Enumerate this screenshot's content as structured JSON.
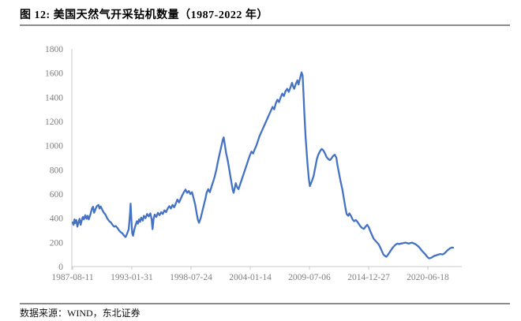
{
  "figure": {
    "title": "图 12: 美国天然气开采钻机数量（1987-2022 年）",
    "source": "数据来源：WIND，东北证券"
  },
  "chart_data": {
    "type": "line",
    "title": "美国天然气开采钻机数量（1987-2022 年）",
    "xlabel": "",
    "ylabel": "",
    "grid": false,
    "legend_position": "none",
    "ylim": [
      0,
      1800
    ],
    "y_tick_interval": 200,
    "y_ticks": [
      0,
      200,
      400,
      600,
      800,
      1000,
      1200,
      1400,
      1600,
      1800
    ],
    "x_ticks": [
      {
        "label": "1987-08-11",
        "year": 1987.61
      },
      {
        "label": "1993-01-31",
        "year": 1993.08
      },
      {
        "label": "1998-07-24",
        "year": 1998.56
      },
      {
        "label": "2004-01-14",
        "year": 2004.04
      },
      {
        "label": "2009-07-06",
        "year": 2009.51
      },
      {
        "label": "2014-12-27",
        "year": 2014.99
      },
      {
        "label": "2020-06-18",
        "year": 2020.46
      }
    ],
    "x_range_years": [
      1987.61,
      2023.6
    ],
    "line_color": "#4472C4",
    "axis_color": "#C9C9C9",
    "label_color": "#7F7F7F",
    "series": [
      {
        "name": "美国天然气开采钻机数量",
        "points": [
          [
            1987.62,
            365
          ],
          [
            1987.7,
            345
          ],
          [
            1987.78,
            390
          ],
          [
            1987.85,
            360
          ],
          [
            1987.95,
            385
          ],
          [
            1988.05,
            330
          ],
          [
            1988.15,
            365
          ],
          [
            1988.25,
            395
          ],
          [
            1988.35,
            345
          ],
          [
            1988.45,
            380
          ],
          [
            1988.55,
            410
          ],
          [
            1988.65,
            390
          ],
          [
            1988.78,
            425
          ],
          [
            1988.9,
            395
          ],
          [
            1989.0,
            420
          ],
          [
            1989.1,
            390
          ],
          [
            1989.25,
            430
          ],
          [
            1989.4,
            480
          ],
          [
            1989.5,
            495
          ],
          [
            1989.6,
            445
          ],
          [
            1989.7,
            470
          ],
          [
            1989.85,
            500
          ],
          [
            1990.0,
            510
          ],
          [
            1990.1,
            480
          ],
          [
            1990.2,
            497
          ],
          [
            1990.35,
            470
          ],
          [
            1990.5,
            445
          ],
          [
            1990.65,
            430
          ],
          [
            1990.8,
            400
          ],
          [
            1991.0,
            375
          ],
          [
            1991.15,
            365
          ],
          [
            1991.3,
            345
          ],
          [
            1991.45,
            330
          ],
          [
            1991.6,
            335
          ],
          [
            1991.75,
            320
          ],
          [
            1991.9,
            300
          ],
          [
            1992.05,
            285
          ],
          [
            1992.2,
            276
          ],
          [
            1992.35,
            258
          ],
          [
            1992.5,
            244
          ],
          [
            1992.6,
            262
          ],
          [
            1992.7,
            285
          ],
          [
            1992.8,
            310
          ],
          [
            1992.92,
            440
          ],
          [
            1992.97,
            520
          ],
          [
            1993.05,
            380
          ],
          [
            1993.12,
            275
          ],
          [
            1993.2,
            255
          ],
          [
            1993.3,
            300
          ],
          [
            1993.42,
            340
          ],
          [
            1993.55,
            375
          ],
          [
            1993.65,
            355
          ],
          [
            1993.75,
            390
          ],
          [
            1993.85,
            370
          ],
          [
            1993.95,
            405
          ],
          [
            1994.1,
            380
          ],
          [
            1994.2,
            420
          ],
          [
            1994.35,
            400
          ],
          [
            1994.5,
            435
          ],
          [
            1994.65,
            415
          ],
          [
            1994.8,
            440
          ],
          [
            1994.92,
            390
          ],
          [
            1995.0,
            310
          ],
          [
            1995.1,
            395
          ],
          [
            1995.2,
            430
          ],
          [
            1995.35,
            410
          ],
          [
            1995.5,
            445
          ],
          [
            1995.65,
            425
          ],
          [
            1995.8,
            450
          ],
          [
            1995.95,
            435
          ],
          [
            1996.1,
            465
          ],
          [
            1996.25,
            450
          ],
          [
            1996.4,
            480
          ],
          [
            1996.55,
            500
          ],
          [
            1996.7,
            480
          ],
          [
            1996.85,
            510
          ],
          [
            1997.0,
            490
          ],
          [
            1997.15,
            520
          ],
          [
            1997.3,
            555
          ],
          [
            1997.45,
            530
          ],
          [
            1997.6,
            560
          ],
          [
            1997.75,
            590
          ],
          [
            1997.9,
            615
          ],
          [
            1998.05,
            637
          ],
          [
            1998.2,
            610
          ],
          [
            1998.35,
            625
          ],
          [
            1998.5,
            600
          ],
          [
            1998.65,
            615
          ],
          [
            1998.8,
            565
          ],
          [
            1998.95,
            510
          ],
          [
            1999.1,
            430
          ],
          [
            1999.2,
            385
          ],
          [
            1999.3,
            362
          ],
          [
            1999.45,
            400
          ],
          [
            1999.6,
            455
          ],
          [
            1999.75,
            510
          ],
          [
            1999.9,
            565
          ],
          [
            2000.0,
            610
          ],
          [
            2000.15,
            640
          ],
          [
            2000.3,
            615
          ],
          [
            2000.45,
            660
          ],
          [
            2000.6,
            700
          ],
          [
            2000.75,
            745
          ],
          [
            2000.9,
            800
          ],
          [
            2001.05,
            870
          ],
          [
            2001.2,
            930
          ],
          [
            2001.35,
            990
          ],
          [
            2001.5,
            1050
          ],
          [
            2001.58,
            1068
          ],
          [
            2001.7,
            1000
          ],
          [
            2001.8,
            940
          ],
          [
            2001.95,
            880
          ],
          [
            2002.1,
            800
          ],
          [
            2002.25,
            720
          ],
          [
            2002.4,
            640
          ],
          [
            2002.5,
            610
          ],
          [
            2002.6,
            650
          ],
          [
            2002.7,
            690
          ],
          [
            2002.8,
            660
          ],
          [
            2002.95,
            640
          ],
          [
            2003.1,
            680
          ],
          [
            2003.25,
            720
          ],
          [
            2003.4,
            760
          ],
          [
            2003.55,
            800
          ],
          [
            2003.7,
            840
          ],
          [
            2003.85,
            880
          ],
          [
            2004.0,
            920
          ],
          [
            2004.15,
            950
          ],
          [
            2004.3,
            935
          ],
          [
            2004.45,
            970
          ],
          [
            2004.6,
            1000
          ],
          [
            2004.75,
            1040
          ],
          [
            2004.9,
            1080
          ],
          [
            2005.05,
            1110
          ],
          [
            2005.2,
            1140
          ],
          [
            2005.35,
            1170
          ],
          [
            2005.5,
            1200
          ],
          [
            2005.65,
            1230
          ],
          [
            2005.8,
            1260
          ],
          [
            2005.95,
            1290
          ],
          [
            2006.1,
            1320
          ],
          [
            2006.25,
            1300
          ],
          [
            2006.4,
            1350
          ],
          [
            2006.55,
            1380
          ],
          [
            2006.7,
            1360
          ],
          [
            2006.85,
            1400
          ],
          [
            2007.0,
            1430
          ],
          [
            2007.15,
            1410
          ],
          [
            2007.3,
            1450
          ],
          [
            2007.45,
            1470
          ],
          [
            2007.6,
            1445
          ],
          [
            2007.75,
            1480
          ],
          [
            2007.9,
            1520
          ],
          [
            2008.0,
            1490
          ],
          [
            2008.1,
            1470
          ],
          [
            2008.25,
            1510
          ],
          [
            2008.4,
            1540
          ],
          [
            2008.5,
            1505
          ],
          [
            2008.65,
            1560
          ],
          [
            2008.78,
            1606
          ],
          [
            2008.88,
            1580
          ],
          [
            2008.95,
            1450
          ],
          [
            2009.05,
            1250
          ],
          [
            2009.15,
            1080
          ],
          [
            2009.25,
            950
          ],
          [
            2009.35,
            830
          ],
          [
            2009.45,
            730
          ],
          [
            2009.55,
            665
          ],
          [
            2009.65,
            688
          ],
          [
            2009.75,
            710
          ],
          [
            2009.9,
            750
          ],
          [
            2010.05,
            820
          ],
          [
            2010.2,
            890
          ],
          [
            2010.35,
            930
          ],
          [
            2010.5,
            955
          ],
          [
            2010.65,
            973
          ],
          [
            2010.8,
            960
          ],
          [
            2010.95,
            935
          ],
          [
            2011.1,
            905
          ],
          [
            2011.25,
            890
          ],
          [
            2011.4,
            880
          ],
          [
            2011.55,
            895
          ],
          [
            2011.7,
            915
          ],
          [
            2011.85,
            925
          ],
          [
            2012.0,
            900
          ],
          [
            2012.1,
            840
          ],
          [
            2012.25,
            770
          ],
          [
            2012.4,
            700
          ],
          [
            2012.55,
            640
          ],
          [
            2012.7,
            560
          ],
          [
            2012.85,
            480
          ],
          [
            2012.95,
            435
          ],
          [
            2013.1,
            420
          ],
          [
            2013.2,
            440
          ],
          [
            2013.35,
            420
          ],
          [
            2013.5,
            390
          ],
          [
            2013.65,
            375
          ],
          [
            2013.8,
            385
          ],
          [
            2013.95,
            370
          ],
          [
            2014.1,
            350
          ],
          [
            2014.25,
            330
          ],
          [
            2014.4,
            318
          ],
          [
            2014.55,
            312
          ],
          [
            2014.7,
            330
          ],
          [
            2014.85,
            345
          ],
          [
            2015.0,
            325
          ],
          [
            2015.15,
            290
          ],
          [
            2015.3,
            260
          ],
          [
            2015.45,
            230
          ],
          [
            2015.6,
            215
          ],
          [
            2015.75,
            200
          ],
          [
            2015.9,
            185
          ],
          [
            2016.05,
            160
          ],
          [
            2016.2,
            130
          ],
          [
            2016.35,
            100
          ],
          [
            2016.5,
            88
          ],
          [
            2016.62,
            81
          ],
          [
            2016.75,
            95
          ],
          [
            2016.9,
            115
          ],
          [
            2017.05,
            135
          ],
          [
            2017.2,
            155
          ],
          [
            2017.35,
            170
          ],
          [
            2017.5,
            183
          ],
          [
            2017.65,
            190
          ],
          [
            2017.8,
            186
          ],
          [
            2017.95,
            190
          ],
          [
            2018.1,
            192
          ],
          [
            2018.25,
            196
          ],
          [
            2018.4,
            198
          ],
          [
            2018.55,
            194
          ],
          [
            2018.7,
            190
          ],
          [
            2018.85,
            195
          ],
          [
            2019.0,
            198
          ],
          [
            2019.15,
            192
          ],
          [
            2019.3,
            186
          ],
          [
            2019.45,
            176
          ],
          [
            2019.6,
            165
          ],
          [
            2019.75,
            150
          ],
          [
            2019.9,
            132
          ],
          [
            2020.05,
            118
          ],
          [
            2020.2,
            104
          ],
          [
            2020.35,
            86
          ],
          [
            2020.5,
            72
          ],
          [
            2020.6,
            68
          ],
          [
            2020.75,
            72
          ],
          [
            2020.9,
            80
          ],
          [
            2021.05,
            88
          ],
          [
            2021.2,
            92
          ],
          [
            2021.35,
            97
          ],
          [
            2021.5,
            101
          ],
          [
            2021.65,
            104
          ],
          [
            2021.8,
            100
          ],
          [
            2021.95,
            106
          ],
          [
            2022.1,
            118
          ],
          [
            2022.25,
            132
          ],
          [
            2022.4,
            144
          ],
          [
            2022.55,
            153
          ],
          [
            2022.7,
            158
          ],
          [
            2022.8,
            156
          ]
        ]
      }
    ]
  }
}
